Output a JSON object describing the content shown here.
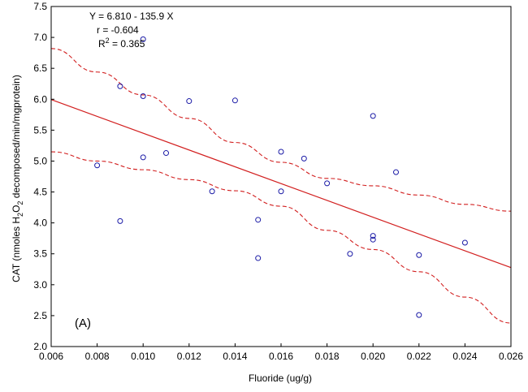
{
  "chart_data": {
    "type": "scatter",
    "title": "",
    "panel_label": "(A)",
    "xlabel": "Fluoride (ug/g)",
    "ylabel_parts": {
      "pre": "CAT (nmoles H",
      "sub1": "2",
      "mid": "O",
      "sub2": "2",
      "post": " decomposed/min/mgprotein)"
    },
    "xlim": [
      0.006,
      0.026
    ],
    "ylim": [
      2.0,
      7.5
    ],
    "x_ticks": [
      "0.006",
      "0.008",
      "0.010",
      "0.012",
      "0.014",
      "0.016",
      "0.018",
      "0.020",
      "0.022",
      "0.024",
      "0.026"
    ],
    "y_ticks": [
      "2.0",
      "2.5",
      "3.0",
      "3.5",
      "4.0",
      "4.5",
      "5.0",
      "5.5",
      "6.0",
      "6.5",
      "7.0",
      "7.5"
    ],
    "annotations": {
      "equation": "Y = 6.810 - 135.9 X",
      "r": "r = -0.604",
      "r2_pre": "R",
      "r2_sup": "2",
      "r2_post": " = 0.365"
    },
    "points": [
      {
        "x": 0.008,
        "y": 4.93
      },
      {
        "x": 0.009,
        "y": 6.21
      },
      {
        "x": 0.009,
        "y": 4.03
      },
      {
        "x": 0.01,
        "y": 6.97
      },
      {
        "x": 0.01,
        "y": 6.05
      },
      {
        "x": 0.01,
        "y": 5.06
      },
      {
        "x": 0.011,
        "y": 5.13
      },
      {
        "x": 0.012,
        "y": 5.97
      },
      {
        "x": 0.013,
        "y": 4.51
      },
      {
        "x": 0.014,
        "y": 5.98
      },
      {
        "x": 0.015,
        "y": 4.05
      },
      {
        "x": 0.015,
        "y": 3.43
      },
      {
        "x": 0.016,
        "y": 5.15
      },
      {
        "x": 0.016,
        "y": 4.51
      },
      {
        "x": 0.017,
        "y": 5.04
      },
      {
        "x": 0.018,
        "y": 4.64
      },
      {
        "x": 0.019,
        "y": 3.5
      },
      {
        "x": 0.02,
        "y": 5.73
      },
      {
        "x": 0.02,
        "y": 3.79
      },
      {
        "x": 0.02,
        "y": 3.73
      },
      {
        "x": 0.021,
        "y": 4.82
      },
      {
        "x": 0.022,
        "y": 3.48
      },
      {
        "x": 0.022,
        "y": 2.51
      },
      {
        "x": 0.024,
        "y": 3.68
      }
    ],
    "regression": {
      "intercept": 6.81,
      "slope": -135.9
    },
    "confidence_upper": [
      {
        "x": 0.006,
        "y": 6.82
      },
      {
        "x": 0.008,
        "y": 6.44
      },
      {
        "x": 0.01,
        "y": 6.07
      },
      {
        "x": 0.012,
        "y": 5.69
      },
      {
        "x": 0.014,
        "y": 5.3
      },
      {
        "x": 0.016,
        "y": 4.98
      },
      {
        "x": 0.018,
        "y": 4.72
      },
      {
        "x": 0.02,
        "y": 4.6
      },
      {
        "x": 0.022,
        "y": 4.45
      },
      {
        "x": 0.024,
        "y": 4.3
      },
      {
        "x": 0.026,
        "y": 4.19
      }
    ],
    "confidence_lower": [
      {
        "x": 0.006,
        "y": 5.15
      },
      {
        "x": 0.008,
        "y": 5.0
      },
      {
        "x": 0.01,
        "y": 4.86
      },
      {
        "x": 0.012,
        "y": 4.7
      },
      {
        "x": 0.014,
        "y": 4.52
      },
      {
        "x": 0.016,
        "y": 4.27
      },
      {
        "x": 0.018,
        "y": 3.88
      },
      {
        "x": 0.02,
        "y": 3.57
      },
      {
        "x": 0.022,
        "y": 3.21
      },
      {
        "x": 0.024,
        "y": 2.8
      },
      {
        "x": 0.026,
        "y": 2.38
      }
    ],
    "grid": false,
    "colors": {
      "points": "#1a1aa6",
      "fit_line": "#d21f1f",
      "axes": "#000000",
      "background": "#ffffff"
    }
  }
}
